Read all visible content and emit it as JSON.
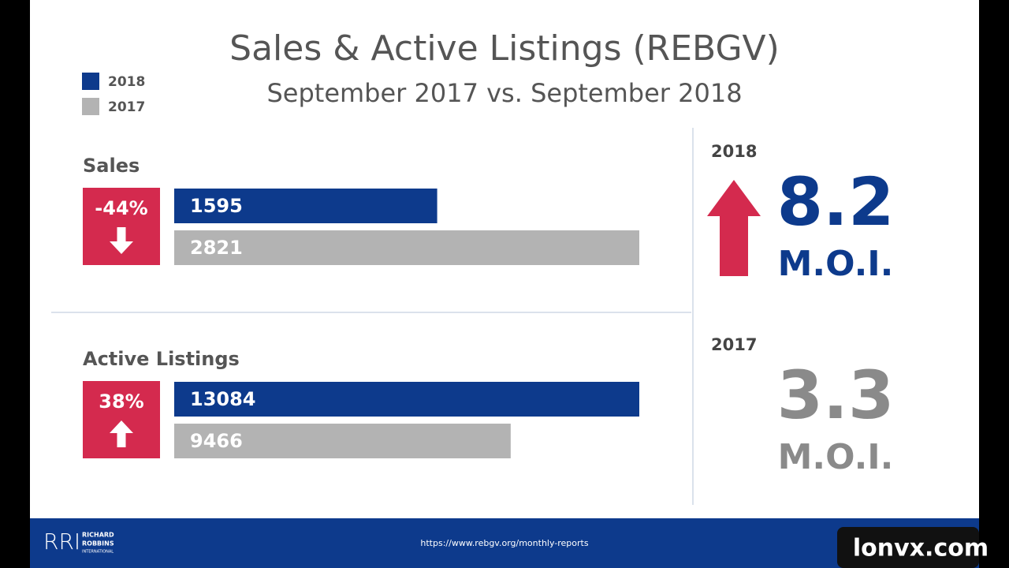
{
  "title": "Sales & Active Listings (REBGV)",
  "subtitle": "September 2017 vs. September 2018",
  "chart_data": [
    {
      "type": "bar",
      "orientation": "horizontal",
      "title": "Sales",
      "change": "-44%",
      "change_direction": "down",
      "change_color": "#d42a4e",
      "series": [
        {
          "name": "2018",
          "color": "#0d3a8c",
          "values": [
            1595
          ]
        },
        {
          "name": "2017",
          "color": "#b3b3b3",
          "values": [
            2821
          ]
        }
      ]
    },
    {
      "type": "bar",
      "orientation": "horizontal",
      "title": "Active Listings",
      "change": "38%",
      "change_direction": "up",
      "change_color": "#d42a4e",
      "series": [
        {
          "name": "2018",
          "color": "#0d3a8c",
          "values": [
            13084
          ]
        },
        {
          "name": "2017",
          "color": "#b3b3b3",
          "values": [
            9466
          ]
        }
      ]
    }
  ],
  "moi": [
    {
      "year": "2018",
      "value": 8.2,
      "label": "M.O.I.",
      "color": "#0d3a8c",
      "direction": "up",
      "arrow_color": "#d42a4e"
    },
    {
      "year": "2017",
      "value": 3.3,
      "label": "M.O.I.",
      "color": "#8a8a8a"
    }
  ],
  "footer": {
    "logo_mark": "RRI",
    "logo_lines": [
      "RICHARD",
      "ROBBINS",
      "INTERNATIONAL"
    ],
    "url": "https://www.rebgv.org/monthly-reports"
  },
  "watermark": "lonvx.com"
}
